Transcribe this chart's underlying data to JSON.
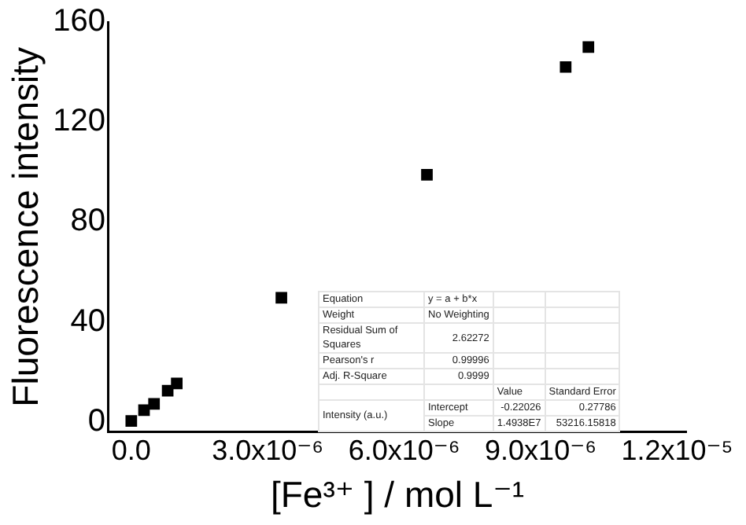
{
  "chart_data": {
    "type": "scatter",
    "xlabel": "[Fe³⁺ ] / mol L⁻¹",
    "ylabel": "Fluorescence intensity",
    "x": [
      0,
      2.8e-07,
      5e-07,
      8e-07,
      1e-06,
      3.3e-06,
      6.5e-06,
      9.55e-06,
      1.005e-05
    ],
    "series": [
      {
        "color": "#000000",
        "values": [
          0.4,
          4.7,
          7.2,
          12.5,
          15.4,
          49.7,
          98.9,
          142,
          150
        ]
      }
    ],
    "marker": "square",
    "grid": false,
    "legend": false,
    "xlim": [
      -5e-07,
      1.22e-05
    ],
    "xticks": [
      {
        "value": 0,
        "label": "0.0"
      },
      {
        "value": 3e-06,
        "label": "3.0x10⁻⁶"
      },
      {
        "value": 6e-06,
        "label": "6.0x10⁻⁶"
      },
      {
        "value": 9e-06,
        "label": "9.0x10⁻⁶"
      },
      {
        "value": 1.2e-05,
        "label": "1.2x10⁻⁵"
      }
    ],
    "ylim": [
      -4,
      160
    ],
    "yticks": [
      0,
      40,
      80,
      120,
      160
    ],
    "annotations": [
      "Equation",
      "y = a + b*x",
      "Weight",
      "No Weighting",
      "Residual Sum of Squares",
      "2.62272",
      "Pearson's r",
      "0.99996",
      "Adj. R-Square",
      "0.9999",
      "Value",
      "Standard Error",
      "Intensity (a.u.)",
      "Intercept",
      "-0.22026",
      "0.27786",
      "Slope",
      "1.4938E7",
      "53216.15818"
    ]
  }
}
